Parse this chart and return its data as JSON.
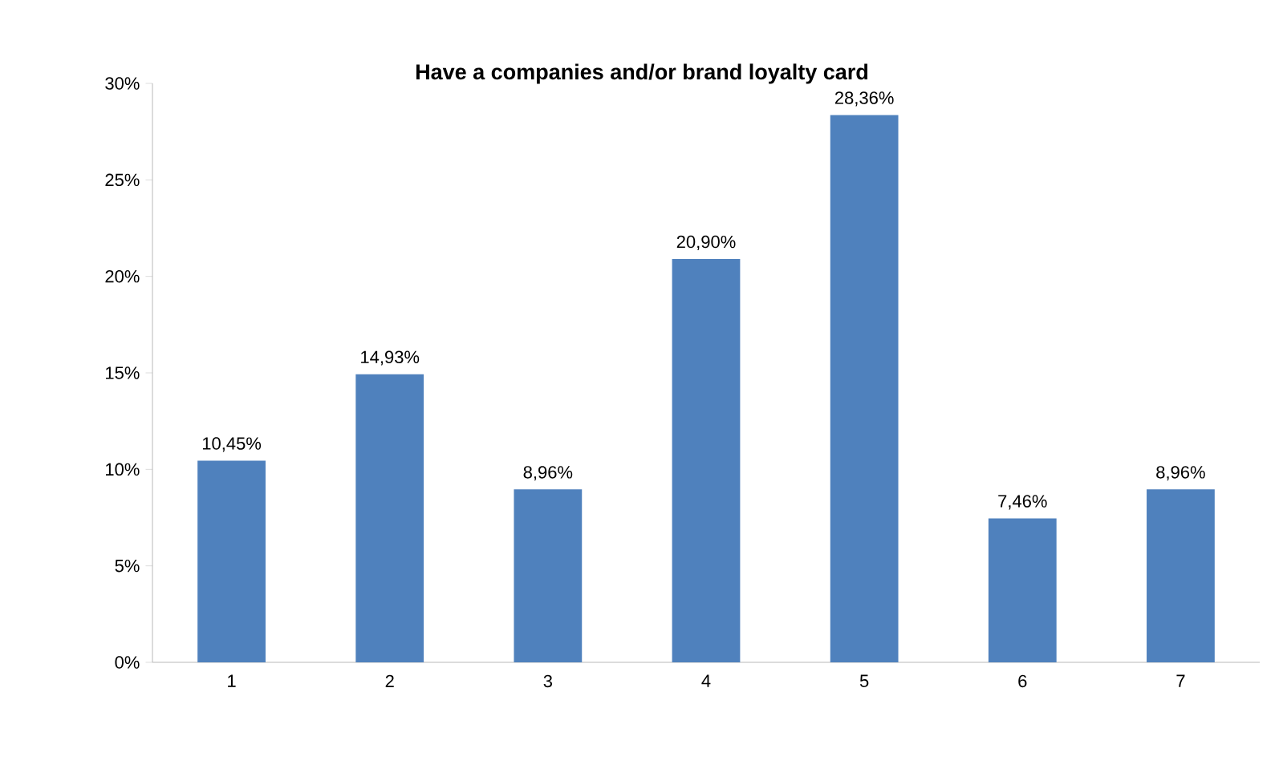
{
  "chart_data": {
    "type": "bar",
    "title": "Have a companies and/or brand loyalty card",
    "categories": [
      "1",
      "2",
      "3",
      "4",
      "5",
      "6",
      "7"
    ],
    "values": [
      10.45,
      14.93,
      8.96,
      20.9,
      28.36,
      7.46,
      8.96
    ],
    "value_labels": [
      "10,45%",
      "14,93%",
      "8,96%",
      "20,90%",
      "28,36%",
      "7,46%",
      "8,96%"
    ],
    "color": "#4f81bd",
    "ylim": [
      0,
      30
    ],
    "yticks": [
      {
        "value": 0,
        "label": "0%"
      },
      {
        "value": 5,
        "label": "5%"
      },
      {
        "value": 10,
        "label": "10%"
      },
      {
        "value": 15,
        "label": "15%"
      },
      {
        "value": 20,
        "label": "20%"
      },
      {
        "value": 25,
        "label": "25%"
      },
      {
        "value": 30,
        "label": "30%"
      }
    ]
  }
}
